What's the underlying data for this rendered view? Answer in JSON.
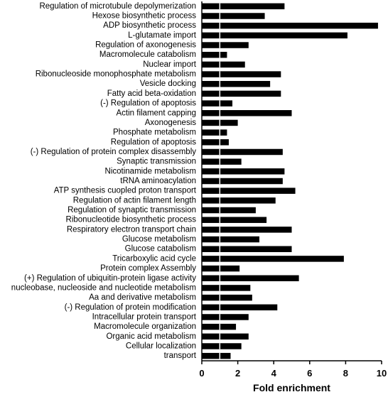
{
  "chart_data": {
    "type": "bar",
    "orientation": "horizontal",
    "categories": [
      "Regulation of microtubule depolymerization",
      "Hexose biosynthetic process",
      "ADP biosynthetic process",
      "L-glutamate import",
      "Regulation of axonogenesis",
      "Macromolecule catabolism",
      "Nuclear import",
      "Ribonucleoside monophosphate metabolism",
      "Vesicle docking",
      "Fatty acid beta-oxidation",
      "(-) Regulation of apoptosis",
      "Actin filament capping",
      "Axonogenesis",
      "Phosphate metabolism",
      "Regulation of apoptosis",
      "(-) Regulation of protein complex disassembly",
      "Synaptic transmission",
      "Nicotinamide metabolism",
      "tRNA aminoacylation",
      "ATP synthesis cuopled proton transport",
      "Regulation of actin filament length",
      "Regulation of synaptic transmission",
      "Ribonucleotide biosynthetic process",
      "Respiratory electron transport chain",
      "Glucose metabolism",
      "Glucose catabolism",
      "Tricarboxylic acid cycle",
      "Protein complex Assembly",
      "(+) Regulation of ubiquitin-protein ligase activity",
      "nucleobase, nucleoside and nucleotide metabolism",
      "Aa and derivative metabolism",
      "(-) Regulation of protein modification",
      "Intracellular protein transport",
      "Macromolecule organization",
      "Organic acid metabolism",
      "Cellular localization",
      "transport"
    ],
    "values": [
      4.6,
      3.5,
      9.8,
      8.1,
      2.6,
      1.4,
      2.4,
      4.4,
      3.8,
      4.4,
      1.7,
      5.0,
      2.0,
      1.4,
      1.5,
      4.5,
      2.2,
      4.6,
      4.5,
      5.2,
      4.1,
      3.0,
      3.6,
      5.0,
      3.2,
      5.0,
      7.9,
      2.1,
      5.4,
      2.7,
      2.8,
      4.2,
      2.6,
      1.9,
      2.6,
      2.2,
      1.6
    ],
    "xlabel": "Fold enrichment",
    "ylabel": "",
    "xlim": [
      0,
      10
    ],
    "xticks": [
      "0",
      "2",
      "4",
      "6",
      "8",
      "10"
    ],
    "reference_line": 1,
    "grid": false,
    "colors": {
      "bar": "#000000",
      "reference_line": "#ffffff",
      "axis": "#000000"
    }
  }
}
